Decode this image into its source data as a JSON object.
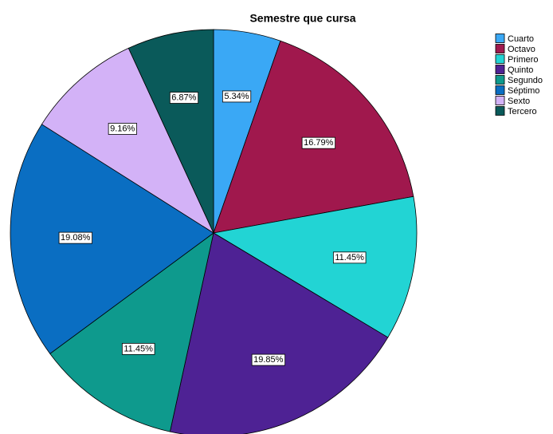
{
  "chart_data": {
    "type": "pie",
    "title": "Semestre que cursa",
    "categories": [
      "Cuarto",
      "Octavo",
      "Primero",
      "Quinto",
      "Segundo",
      "Séptimo",
      "Sexto",
      "Tercero"
    ],
    "values": [
      5.34,
      16.79,
      11.45,
      19.85,
      11.45,
      19.08,
      9.16,
      6.87
    ],
    "value_labels": [
      "5.34%",
      "16.79%",
      "11.45%",
      "19.85%",
      "11.45%",
      "19.08%",
      "9.16%",
      "6.87%"
    ],
    "colors": [
      "#3aa8f5",
      "#a0184d",
      "#22d4d4",
      "#4e2294",
      "#0e9a8d",
      "#0a6ec2",
      "#d3b2f7",
      "#0a5a5a"
    ],
    "legend": "top-right"
  }
}
